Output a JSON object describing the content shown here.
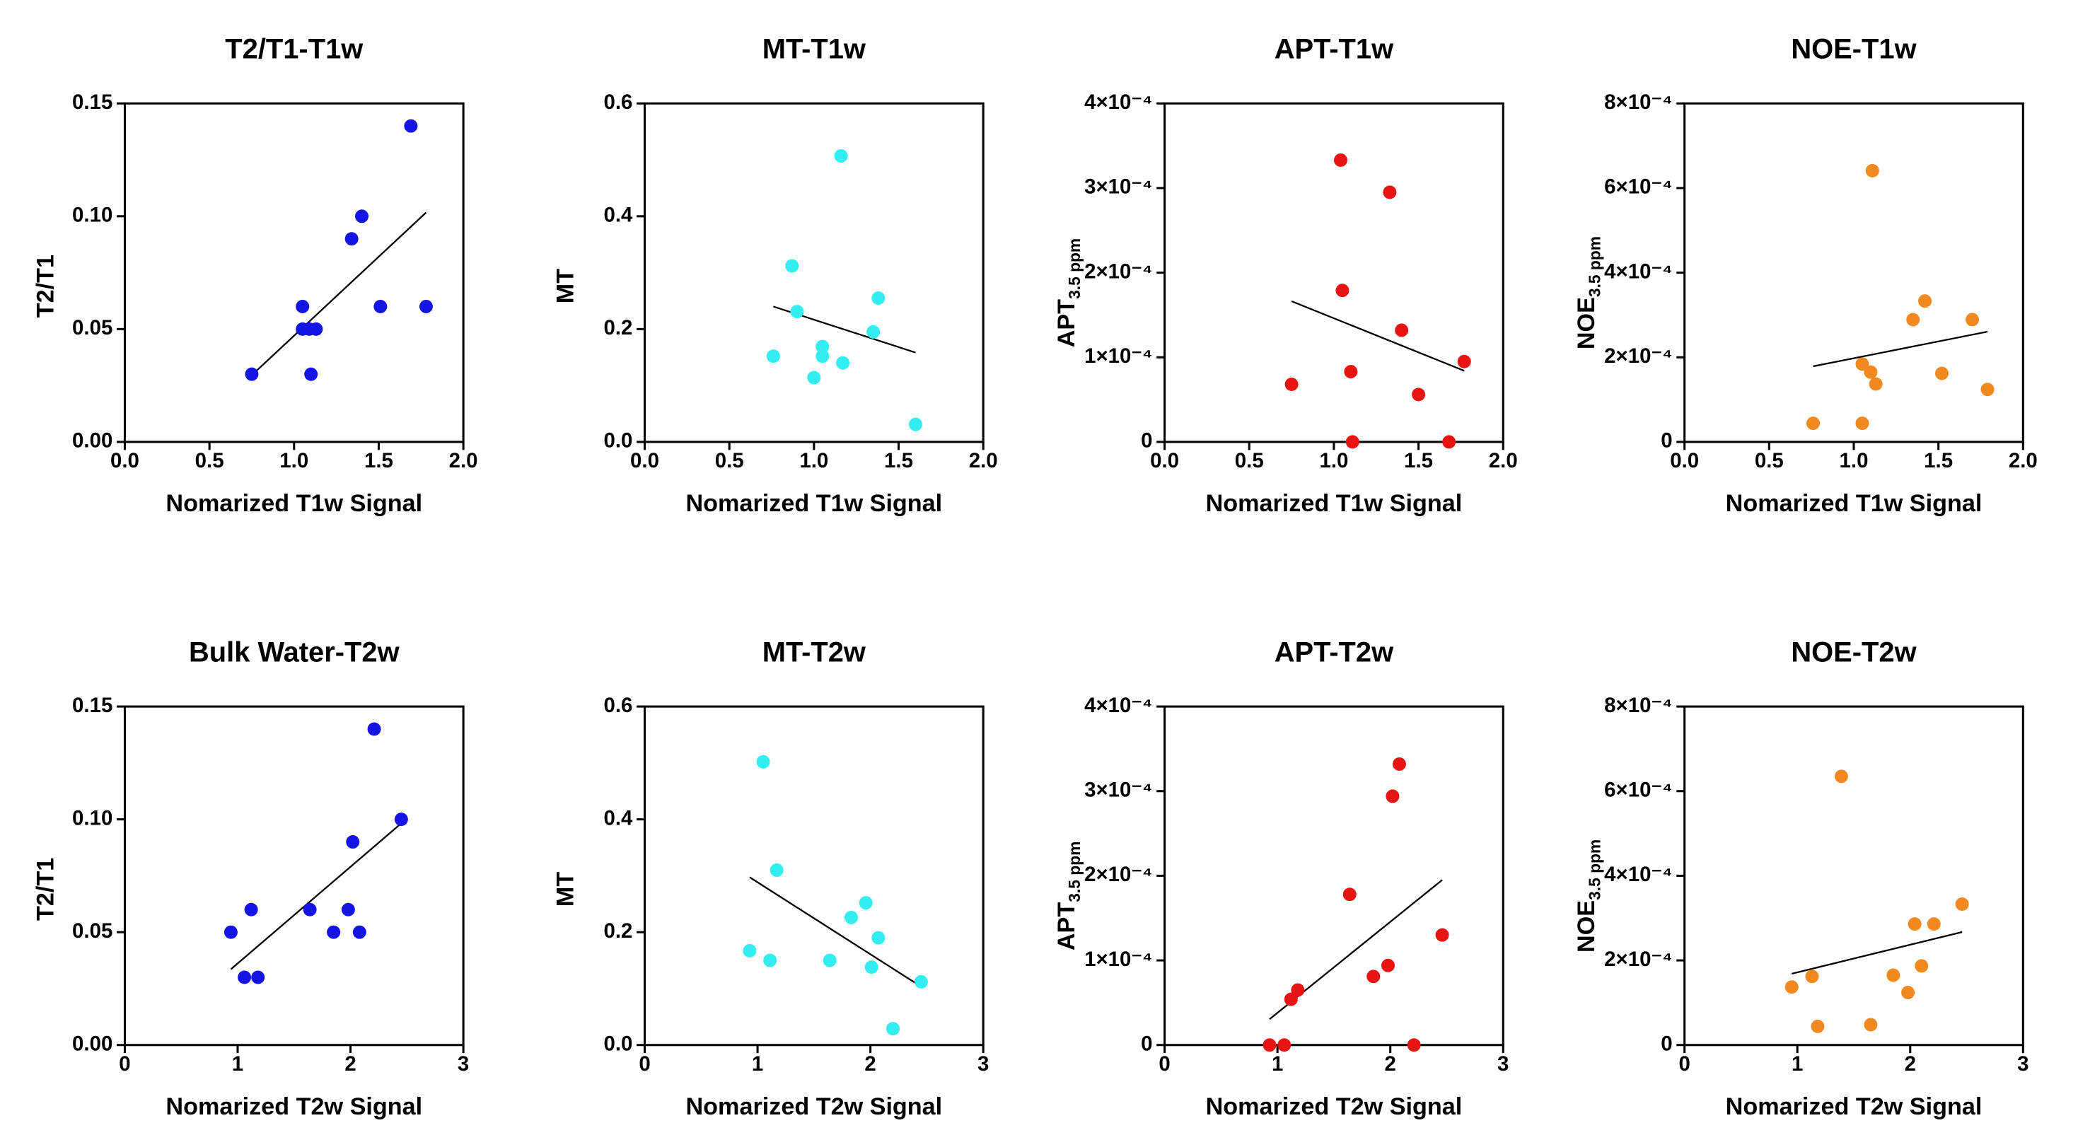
{
  "chart_data": [
    {
      "type": "scatter",
      "title": "T2/T1-T1w",
      "xlabel": "Nomarized T1w Signal",
      "ylabel": "T2/T1",
      "color": "#1414e6",
      "x": [
        0.75,
        1.05,
        1.05,
        1.09,
        1.13,
        1.1,
        1.34,
        1.4,
        1.51,
        1.69,
        1.78
      ],
      "y": [
        0.03,
        0.05,
        0.06,
        0.05,
        0.05,
        0.03,
        0.09,
        0.1,
        0.06,
        0.14,
        0.06
      ],
      "xlim": [
        0,
        2
      ],
      "xticks": [
        {
          "value": 0,
          "label": "0.0"
        },
        0.5,
        {
          "value": 1,
          "label": "1.0"
        },
        1.5,
        {
          "value": 2,
          "label": "2.0"
        }
      ],
      "ylim": [
        0,
        0.15
      ],
      "yticks": [
        {
          "value": 0,
          "label": "0.00"
        },
        0.05,
        {
          "value": 0.1,
          "label": "0.10"
        },
        0.15
      ]
    },
    {
      "type": "scatter",
      "title": "MT-T1w",
      "xlabel": "Nomarized T1w Signal",
      "ylabel": "MT",
      "color": "#33eef0",
      "x": [
        0.76,
        0.87,
        0.9,
        1.0,
        1.05,
        1.05,
        1.16,
        1.17,
        1.35,
        1.38,
        1.6
      ],
      "y": [
        0.152,
        0.312,
        0.231,
        0.114,
        0.169,
        0.152,
        0.507,
        0.14,
        0.195,
        0.255,
        0.031
      ],
      "xlim": [
        0,
        2
      ],
      "xticks": [
        {
          "value": 0,
          "label": "0.0"
        },
        0.5,
        {
          "value": 1,
          "label": "1.0"
        },
        1.5,
        {
          "value": 2,
          "label": "2.0"
        }
      ],
      "ylim": [
        0,
        0.6
      ],
      "yticks": [
        {
          "value": 0,
          "label": "0.0"
        },
        0.2,
        0.4,
        0.6
      ]
    },
    {
      "type": "scatter",
      "title": "APT-T1w",
      "xlabel": "Nomarized T1w Signal",
      "ylabel": "APT",
      "ylabel_sub": "3.5 ppm",
      "color": "#e81414",
      "x": [
        0.75,
        1.04,
        1.05,
        1.1,
        1.11,
        1.33,
        1.4,
        1.5,
        1.68,
        1.77
      ],
      "y": [
        6.8e-05,
        0.000333,
        0.000179,
        8.3e-05,
        0,
        0.000295,
        0.000132,
        5.6e-05,
        0,
        9.5e-05
      ],
      "xlim": [
        0,
        2
      ],
      "xticks": [
        {
          "value": 0,
          "label": "0.0"
        },
        0.5,
        {
          "value": 1,
          "label": "1.0"
        },
        1.5,
        {
          "value": 2,
          "label": "2.0"
        }
      ],
      "ylim": [
        0,
        0.0004
      ],
      "yticks": [
        0,
        {
          "value": 0.0001,
          "label": "1×10⁻⁴"
        },
        {
          "value": 0.0002,
          "label": "2×10⁻⁴"
        },
        {
          "value": 0.0003,
          "label": "3×10⁻⁴"
        },
        {
          "value": 0.0004,
          "label": "4×10⁻⁴"
        }
      ]
    },
    {
      "type": "scatter",
      "title": "NOE-T1w",
      "xlabel": "Nomarized T1w Signal",
      "ylabel": "NOE",
      "ylabel_sub": "3.5 ppm",
      "color": "#f08a1e",
      "x": [
        0.76,
        1.05,
        1.05,
        1.1,
        1.13,
        1.11,
        1.35,
        1.42,
        1.52,
        1.7,
        1.79
      ],
      "y": [
        4.4e-05,
        4.4e-05,
        0.000184,
        0.000165,
        0.000137,
        0.000641,
        0.000289,
        0.000333,
        0.000162,
        0.000289,
        0.000124
      ],
      "xlim": [
        0,
        2
      ],
      "xticks": [
        {
          "value": 0,
          "label": "0.0"
        },
        0.5,
        {
          "value": 1,
          "label": "1.0"
        },
        1.5,
        {
          "value": 2,
          "label": "2.0"
        }
      ],
      "ylim": [
        0,
        0.0008
      ],
      "yticks": [
        0,
        {
          "value": 0.0002,
          "label": "2×10⁻⁴"
        },
        {
          "value": 0.0004,
          "label": "4×10⁻⁴"
        },
        {
          "value": 0.0006,
          "label": "6×10⁻⁴"
        },
        {
          "value": 0.0008,
          "label": "8×10⁻⁴"
        }
      ]
    },
    {
      "type": "scatter",
      "title": "Bulk Water-T2w",
      "xlabel": "Nomarized T2w Signal",
      "ylabel": "T2/T1",
      "color": "#1414e6",
      "x": [
        0.94,
        1.06,
        1.12,
        1.18,
        1.64,
        1.85,
        1.98,
        2.02,
        2.08,
        2.21,
        2.45
      ],
      "y": [
        0.05,
        0.03,
        0.06,
        0.03,
        0.06,
        0.05,
        0.06,
        0.09,
        0.05,
        0.14,
        0.1
      ],
      "xlim": [
        0,
        3
      ],
      "xticks": [
        0,
        1,
        2,
        3
      ],
      "ylim": [
        0,
        0.15
      ],
      "yticks": [
        {
          "value": 0,
          "label": "0.00"
        },
        0.05,
        {
          "value": 0.1,
          "label": "0.10"
        },
        0.15
      ]
    },
    {
      "type": "scatter",
      "title": "MT-T2w",
      "xlabel": "Nomarized T2w Signal",
      "ylabel": "MT",
      "color": "#33eef0",
      "x": [
        0.93,
        1.11,
        1.05,
        1.17,
        1.64,
        1.83,
        1.96,
        2.01,
        2.07,
        2.2,
        2.45
      ],
      "y": [
        0.167,
        0.15,
        0.502,
        0.31,
        0.15,
        0.226,
        0.252,
        0.138,
        0.19,
        0.029,
        0.112
      ],
      "xlim": [
        0,
        3
      ],
      "xticks": [
        0,
        1,
        2,
        3
      ],
      "ylim": [
        0,
        0.6
      ],
      "yticks": [
        {
          "value": 0,
          "label": "0.0"
        },
        0.2,
        0.4,
        0.6
      ]
    },
    {
      "type": "scatter",
      "title": "APT-T2w",
      "xlabel": "Nomarized T2w Signal",
      "ylabel": "APT",
      "ylabel_sub": "3.5 ppm",
      "color": "#e81414",
      "x": [
        0.93,
        1.06,
        1.12,
        1.18,
        1.64,
        1.85,
        1.98,
        2.02,
        2.08,
        2.21,
        2.46
      ],
      "y": [
        0,
        0,
        5.4e-05,
        6.5e-05,
        0.000178,
        8.1e-05,
        9.4e-05,
        0.000294,
        0.000332,
        0,
        0.00013
      ],
      "xlim": [
        0,
        3
      ],
      "xticks": [
        0,
        1,
        2,
        3
      ],
      "ylim": [
        0,
        0.0004
      ],
      "yticks": [
        0,
        {
          "value": 0.0001,
          "label": "1×10⁻⁴"
        },
        {
          "value": 0.0002,
          "label": "2×10⁻⁴"
        },
        {
          "value": 0.0003,
          "label": "3×10⁻⁴"
        },
        {
          "value": 0.0004,
          "label": "4×10⁻⁴"
        }
      ]
    },
    {
      "type": "scatter",
      "title": "NOE-T2w",
      "xlabel": "Nomarized T2w Signal",
      "ylabel": "NOE",
      "ylabel_sub": "3.5 ppm",
      "color": "#f08a1e",
      "x": [
        0.95,
        1.13,
        1.18,
        1.39,
        1.65,
        1.85,
        1.98,
        2.04,
        2.1,
        2.21,
        2.46
      ],
      "y": [
        0.000137,
        0.000162,
        4.4e-05,
        0.000635,
        4.8e-05,
        0.000165,
        0.000124,
        0.000286,
        0.000187,
        0.000286,
        0.000333
      ],
      "xlim": [
        0,
        3
      ],
      "xticks": [
        0,
        1,
        2,
        3
      ],
      "ylim": [
        0,
        0.0008
      ],
      "yticks": [
        0,
        {
          "value": 0.0002,
          "label": "2×10⁻⁴"
        },
        {
          "value": 0.0004,
          "label": "4×10⁻⁴"
        },
        {
          "value": 0.0006,
          "label": "6×10⁻⁴"
        },
        {
          "value": 0.0008,
          "label": "8×10⁻⁴"
        }
      ]
    }
  ]
}
